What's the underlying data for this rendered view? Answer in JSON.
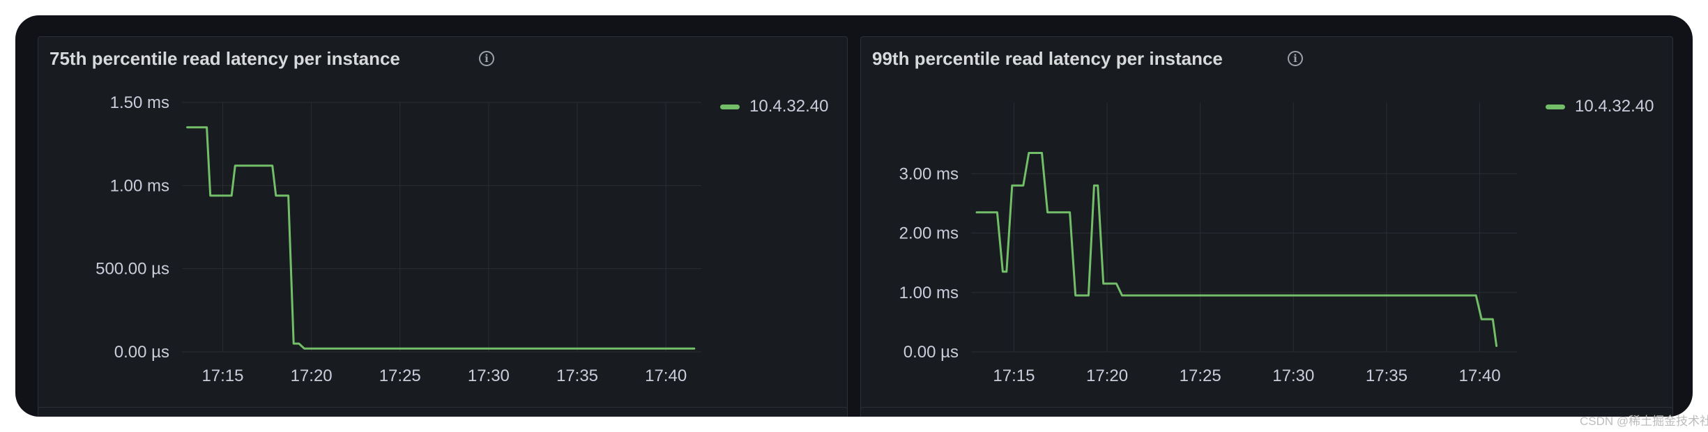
{
  "colors": {
    "series": "#73bf69",
    "grid": "#2a2d33",
    "axis_text": "#ccccdc"
  },
  "watermark": "CSDN @稀土掘金技术社区",
  "chart_data": [
    {
      "type": "line",
      "title": "75th percentile read latency per instance",
      "x_ticks": [
        "17:15",
        "17:20",
        "17:25",
        "17:30",
        "17:35",
        "17:40"
      ],
      "x_tick_minutes": [
        15,
        20,
        25,
        30,
        35,
        40
      ],
      "xlim_minutes": [
        12.7,
        42.0
      ],
      "y_ticks": [
        {
          "value": 0,
          "label": "0.00 µs"
        },
        {
          "value": 500,
          "label": "500.00 µs"
        },
        {
          "value": 1000,
          "label": "1.00 ms"
        },
        {
          "value": 1500,
          "label": "1.50 ms"
        }
      ],
      "y_unit": "µs",
      "ylim": [
        0,
        1500
      ],
      "grid": true,
      "legend_placement": "top-right",
      "series": [
        {
          "name": "10.4.32.40",
          "x_minutes": [
            13.0,
            14.1,
            14.3,
            15.5,
            15.7,
            17.8,
            18.0,
            18.7,
            19.0,
            19.3,
            19.6,
            41.6
          ],
          "values": [
            1350,
            1350,
            940,
            940,
            1120,
            1120,
            940,
            940,
            50,
            50,
            20,
            20
          ]
        }
      ]
    },
    {
      "type": "line",
      "title": "99th percentile read latency per instance",
      "x_ticks": [
        "17:15",
        "17:20",
        "17:25",
        "17:30",
        "17:35",
        "17:40"
      ],
      "x_tick_minutes": [
        15,
        20,
        25,
        30,
        35,
        40
      ],
      "xlim_minutes": [
        12.7,
        42.0
      ],
      "y_ticks": [
        {
          "value": 0,
          "label": "0.00 µs"
        },
        {
          "value": 1,
          "label": "1.00 ms"
        },
        {
          "value": 2,
          "label": "2.00 ms"
        },
        {
          "value": 3,
          "label": "3.00 ms"
        }
      ],
      "y_unit": "ms",
      "ylim": [
        0,
        4.2
      ],
      "grid": true,
      "legend_placement": "top-right",
      "series": [
        {
          "name": "10.4.32.40",
          "x_minutes": [
            13.0,
            14.1,
            14.4,
            14.6,
            14.9,
            15.5,
            15.8,
            16.5,
            16.8,
            18.0,
            18.3,
            19.0,
            19.3,
            19.5,
            19.8,
            20.5,
            20.8,
            39.8,
            40.1,
            40.7,
            40.9
          ],
          "values": [
            2.35,
            2.35,
            1.35,
            1.35,
            2.8,
            2.8,
            3.35,
            3.35,
            2.35,
            2.35,
            0.95,
            0.95,
            2.8,
            2.8,
            1.15,
            1.15,
            0.95,
            0.95,
            0.55,
            0.55,
            0.1
          ]
        }
      ]
    }
  ]
}
